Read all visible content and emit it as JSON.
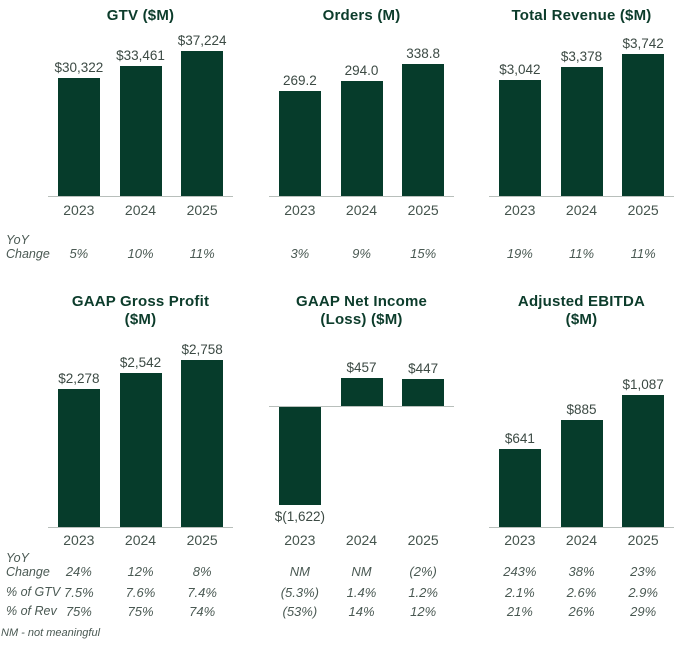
{
  "colors": {
    "bar": "#063C2B",
    "title": "#0C3C2B",
    "axis_line": "#B8BFBB",
    "muted_text": "#4A5953"
  },
  "labels": {
    "yoy": "YoY\nChange",
    "pct_gtv": "% of GTV",
    "pct_rev": "% of Rev"
  },
  "footnote": "NM - not meaningful",
  "chart_data": [
    {
      "type": "bar",
      "title": "GTV ($M)",
      "categories": [
        "2023",
        "2024",
        "2025"
      ],
      "values": [
        30322,
        33461,
        37224
      ],
      "labels": [
        "$30,322",
        "$33,461",
        "$37,224"
      ],
      "ylim": [
        0,
        40000
      ],
      "grid": false,
      "stats": {
        "yoy": [
          "5%",
          "10%",
          "11%"
        ]
      }
    },
    {
      "type": "bar",
      "title": "Orders (M)",
      "categories": [
        "2023",
        "2024",
        "2025"
      ],
      "values": [
        269.2,
        294.0,
        338.8
      ],
      "labels": [
        "269.2",
        "294.0",
        "338.8"
      ],
      "ylim": [
        0,
        400
      ],
      "grid": false,
      "stats": {
        "yoy": [
          "3%",
          "9%",
          "15%"
        ]
      }
    },
    {
      "type": "bar",
      "title": "Total Revenue ($M)",
      "categories": [
        "2023",
        "2024",
        "2025"
      ],
      "values": [
        3042,
        3378,
        3742
      ],
      "labels": [
        "$3,042",
        "$3,378",
        "$3,742"
      ],
      "ylim": [
        0,
        4100
      ],
      "grid": false,
      "stats": {
        "yoy": [
          "19%",
          "11%",
          "11%"
        ]
      }
    },
    {
      "type": "bar",
      "title": "GAAP Gross Profit\n($M)",
      "categories": [
        "2023",
        "2024",
        "2025"
      ],
      "values": [
        2278,
        2542,
        2758
      ],
      "labels": [
        "$2,278",
        "$2,542",
        "$2,758"
      ],
      "ylim": [
        0,
        3000
      ],
      "grid": false,
      "stats": {
        "yoy": [
          "24%",
          "12%",
          "8%"
        ],
        "pct_gtv": [
          "7.5%",
          "7.6%",
          "7.4%"
        ],
        "pct_rev": [
          "75%",
          "75%",
          "74%"
        ]
      }
    },
    {
      "type": "bar",
      "title": "GAAP Net Income\n(Loss) ($M)",
      "categories": [
        "2023",
        "2024",
        "2025"
      ],
      "values": [
        -1622,
        457,
        447
      ],
      "labels": [
        "$(1,622)",
        "$457",
        "$447"
      ],
      "ylim": [
        -2000,
        1000
      ],
      "grid": false,
      "stats": {
        "yoy": [
          "NM",
          "NM",
          "(2%)"
        ],
        "pct_gtv": [
          "(5.3%)",
          "1.4%",
          "1.2%"
        ],
        "pct_rev": [
          "(53%)",
          "14%",
          "12%"
        ]
      }
    },
    {
      "type": "bar",
      "title": "Adjusted EBITDA\n($M)",
      "categories": [
        "2023",
        "2024",
        "2025"
      ],
      "values": [
        641,
        885,
        1087
      ],
      "labels": [
        "$641",
        "$885",
        "$1,087"
      ],
      "ylim": [
        0,
        1500
      ],
      "grid": false,
      "stats": {
        "yoy": [
          "243%",
          "38%",
          "23%"
        ],
        "pct_gtv": [
          "2.1%",
          "2.6%",
          "2.9%"
        ],
        "pct_rev": [
          "21%",
          "26%",
          "29%"
        ]
      }
    }
  ]
}
